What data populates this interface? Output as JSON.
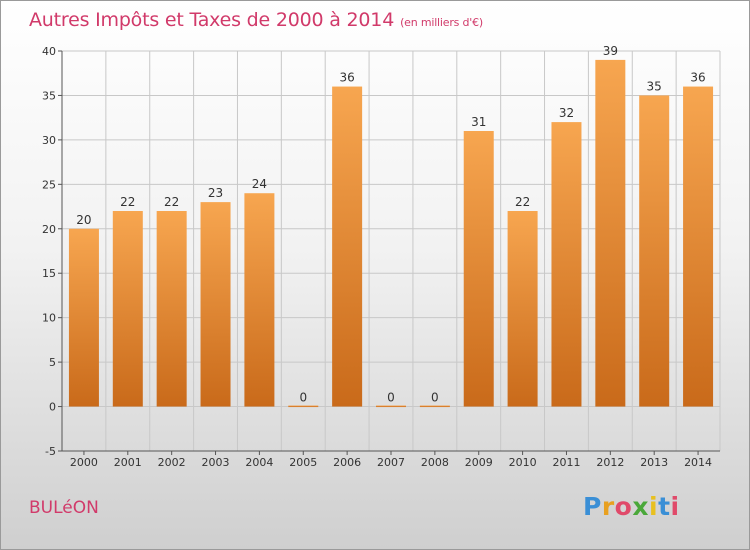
{
  "header": {
    "title": "Autres Impôts et Taxes de 2000 à 2014",
    "subtitle": "(en milliers d'€)"
  },
  "footer": {
    "town": "BULéON",
    "logo_text": "Proxiti"
  },
  "colors": {
    "bar_top": "#f7a650",
    "bar_bottom": "#c96a1a",
    "title": "#d13a6a",
    "grid": "#c8c8c8"
  },
  "chart_data": {
    "type": "bar",
    "categories": [
      "2000",
      "2001",
      "2002",
      "2003",
      "2004",
      "2005",
      "2006",
      "2007",
      "2008",
      "2009",
      "2010",
      "2011",
      "2012",
      "2013",
      "2014"
    ],
    "values": [
      20,
      22,
      22,
      23,
      24,
      0,
      36,
      0,
      0,
      31,
      22,
      32,
      39,
      35,
      36
    ],
    "title": "Autres Impôts et Taxes de 2000 à 2014",
    "subtitle": "(en milliers d'€)",
    "ylim": [
      -5,
      40
    ],
    "yticks": [
      -5,
      0,
      5,
      10,
      15,
      20,
      25,
      30,
      35,
      40
    ],
    "grid": true,
    "data_labels": true
  }
}
